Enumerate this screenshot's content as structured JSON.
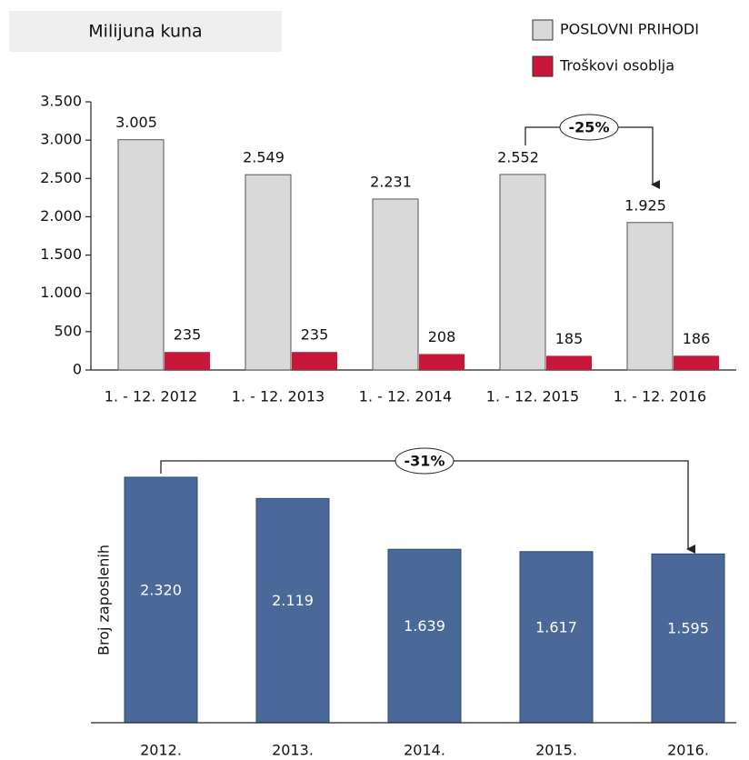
{
  "chart_data": [
    {
      "type": "bar",
      "title": "Milijuna kuna",
      "categories": [
        "1. - 12.  2012",
        "1. - 12.  2013",
        "1. - 12.  2014",
        "1. - 12.  2015",
        "1. - 12.  2016"
      ],
      "series": [
        {
          "name": "POSLOVNI PRIHODI",
          "color": "#d9d9d9",
          "values": [
            3005,
            2549,
            2231,
            2552,
            1925
          ],
          "value_labels": [
            "3.005",
            "2.549",
            "2.231",
            "2.552",
            "1.925"
          ]
        },
        {
          "name": "Troškovi osoblja",
          "color": "#c8173a",
          "values": [
            235,
            235,
            208,
            185,
            186
          ]
        }
      ],
      "ylim": [
        0,
        3500
      ],
      "yticks": [
        0,
        500,
        {
          "value": 1000,
          "label": "1.000"
        },
        {
          "value": 1500,
          "label": "1.500"
        },
        {
          "value": 2000,
          "label": "2.000"
        },
        {
          "value": 2500,
          "label": "2.500"
        },
        {
          "value": 3000,
          "label": "3.000"
        },
        {
          "value": 3500,
          "label": "3.500"
        }
      ],
      "annotation": "-25%"
    },
    {
      "type": "bar",
      "y_label": "Broj zaposlenih",
      "categories": [
        "2012.",
        "2013.",
        "2014.",
        "2015.",
        "2016."
      ],
      "values": [
        2320,
        2119,
        1639,
        1617,
        1595
      ],
      "value_labels": [
        "2.320",
        "2.119",
        "1.639",
        "1.617",
        "1.595"
      ],
      "color": "#4a6898",
      "ylim": [
        0,
        2500
      ],
      "annotation": "-31%"
    }
  ]
}
